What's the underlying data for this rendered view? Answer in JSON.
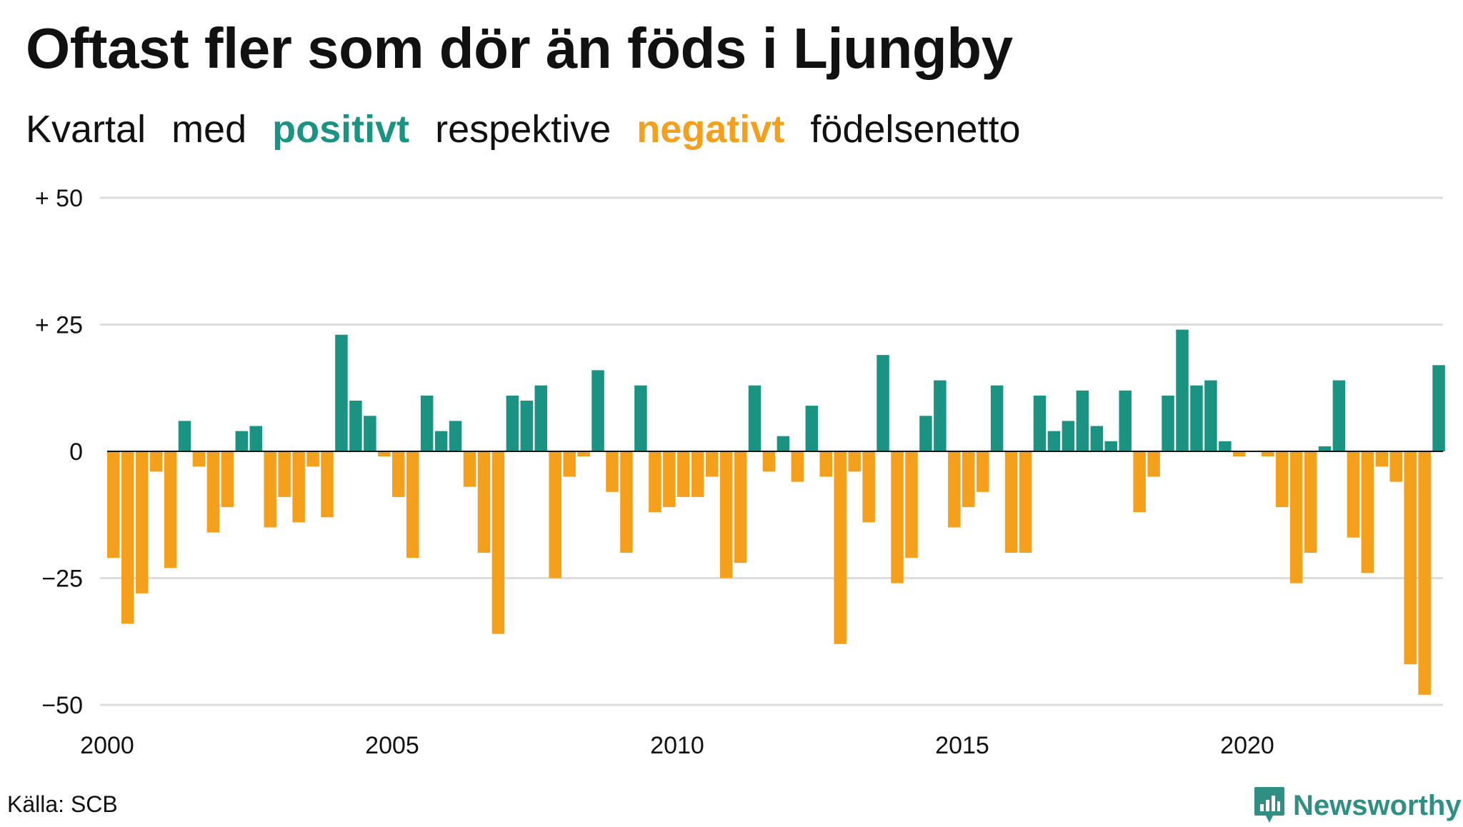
{
  "title": "Oftast fler som dör än föds i Ljungby",
  "subtitle": {
    "prefix": "Kvartal",
    "middle": "med",
    "positive_word": "positivt",
    "between": "respektive",
    "negative_word": "negativt",
    "suffix": "födelsenetto"
  },
  "source": "Källa: SCB",
  "brand": {
    "name": "Newsworthy",
    "icon": "newsworthy-logo-icon"
  },
  "colors": {
    "positive": "#1a9383",
    "negative": "#f5a01c",
    "grid": "#dddddd",
    "axis": "#111111"
  },
  "chart_data": {
    "type": "bar",
    "title": "Oftast fler som dör än föds i Ljungby",
    "subtitle": "Kvartal med positivt respektive negativt födelsenetto",
    "xlabel": "",
    "ylabel": "",
    "ylim": [
      -50,
      50
    ],
    "yticks": [
      {
        "value": 50,
        "label": "+ 50"
      },
      {
        "value": 25,
        "label": "+ 25"
      },
      {
        "value": 0,
        "label": "0"
      },
      {
        "value": -25,
        "label": "−25"
      },
      {
        "value": -50,
        "label": "−50"
      }
    ],
    "xticks": [
      "2000",
      "2005",
      "2010",
      "2015",
      "2020"
    ],
    "grid": true,
    "start_year": 2000,
    "values": [
      -21,
      -34,
      -28,
      -4,
      -23,
      6,
      -3,
      -16,
      -11,
      4,
      5,
      -15,
      -9,
      -14,
      -3,
      -13,
      23,
      10,
      7,
      -1,
      -9,
      -21,
      11,
      4,
      6,
      -7,
      -20,
      -36,
      11,
      10,
      13,
      -25,
      -5,
      -1,
      16,
      -8,
      -20,
      13,
      -12,
      -11,
      -9,
      -9,
      -5,
      -25,
      -22,
      13,
      -4,
      3,
      -6,
      9,
      -5,
      -38,
      -4,
      -14,
      19,
      -26,
      -21,
      7,
      14,
      -15,
      -11,
      -8,
      13,
      -20,
      -20,
      11,
      4,
      6,
      12,
      5,
      2,
      12,
      -12,
      -5,
      11,
      24,
      13,
      14,
      2,
      -1,
      0,
      -1,
      -11,
      -26,
      -20,
      1,
      14,
      -17,
      -24,
      -3,
      -6,
      -42,
      -48,
      17
    ]
  }
}
